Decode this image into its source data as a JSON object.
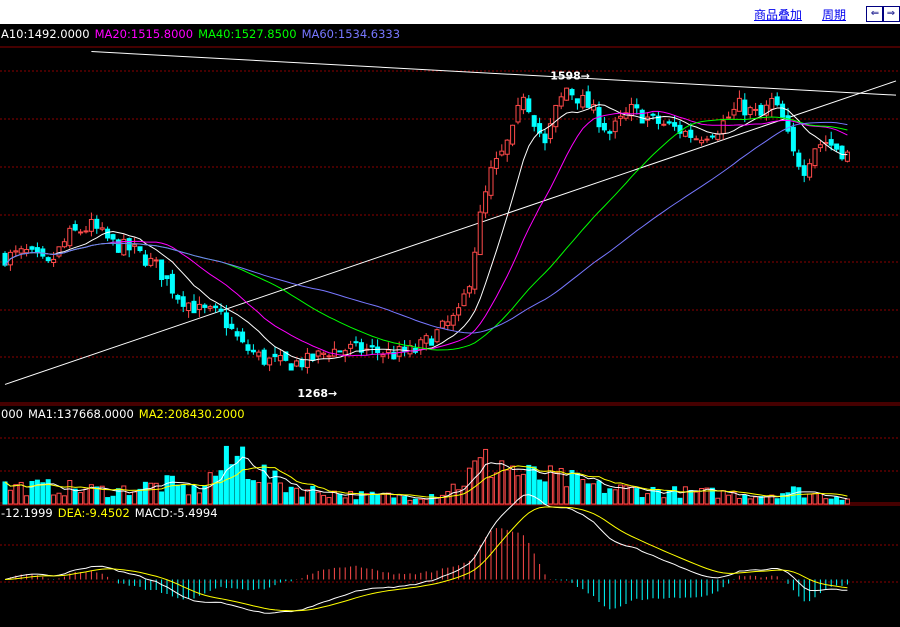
{
  "toolbar": {
    "overlay_label": "商品叠加",
    "period_label": "周期",
    "prev_icon": "arrow-left-icon",
    "next_icon": "arrow-right-icon"
  },
  "colors": {
    "up": "#ff4a4a",
    "down": "#00ffff",
    "ma10": "#ffffff",
    "ma20": "#ff00ff",
    "ma40": "#00ff00",
    "ma60": "#7777ff",
    "grid": "#8b0000",
    "trendline": "#ffffff",
    "vol_ma1": "#ffffff",
    "vol_ma2": "#ffff00",
    "macd_dif": "#ffffff",
    "macd_dea": "#ffff00"
  },
  "chart_data": [
    {
      "type": "candlestick",
      "legend": [
        {
          "text": "A10:1492.0000",
          "color": "#ffffff"
        },
        {
          "text": "MA20:1515.8000",
          "color": "#ff00ff"
        },
        {
          "text": "MA40:1527.8500",
          "color": "#00ff00"
        },
        {
          "text": "MA60:1534.6333",
          "color": "#7777ff"
        }
      ],
      "annotations": [
        {
          "text": "1598",
          "value": 1598,
          "kind": "high"
        },
        {
          "text": "1268",
          "value": 1268,
          "kind": "low"
        }
      ],
      "ylim": [
        1240,
        1640
      ],
      "anchors": [
        [
          0,
          1405
        ],
        [
          4,
          1410
        ],
        [
          8,
          1395
        ],
        [
          12,
          1430
        ],
        [
          16,
          1440
        ],
        [
          20,
          1420
        ],
        [
          24,
          1412
        ],
        [
          28,
          1395
        ],
        [
          32,
          1362
        ],
        [
          36,
          1345
        ],
        [
          40,
          1340
        ],
        [
          44,
          1305
        ],
        [
          48,
          1290
        ],
        [
          52,
          1285
        ],
        [
          56,
          1288
        ],
        [
          60,
          1300
        ],
        [
          64,
          1302
        ],
        [
          68,
          1300
        ],
        [
          72,
          1296
        ],
        [
          76,
          1300
        ],
        [
          80,
          1320
        ],
        [
          84,
          1340
        ],
        [
          86,
          1380
        ],
        [
          88,
          1450
        ],
        [
          90,
          1500
        ],
        [
          92,
          1520
        ],
        [
          94,
          1545
        ],
        [
          96,
          1590
        ],
        [
          98,
          1560
        ],
        [
          100,
          1530
        ],
        [
          102,
          1570
        ],
        [
          104,
          1595
        ],
        [
          108,
          1575
        ],
        [
          110,
          1560
        ],
        [
          112,
          1545
        ],
        [
          116,
          1570
        ],
        [
          120,
          1558
        ],
        [
          124,
          1550
        ],
        [
          128,
          1540
        ],
        [
          132,
          1550
        ],
        [
          136,
          1575
        ],
        [
          140,
          1563
        ],
        [
          142,
          1580
        ],
        [
          144,
          1560
        ],
        [
          146,
          1520
        ],
        [
          148,
          1505
        ],
        [
          150,
          1530
        ],
        [
          152,
          1535
        ],
        [
          154,
          1528
        ],
        [
          156,
          1520
        ]
      ],
      "ma_periods": [
        10,
        20,
        40,
        60
      ],
      "trendlines": [
        {
          "from": [
            16,
            1636
          ],
          "to": [
            165,
            1587
          ]
        },
        {
          "from": [
            0,
            1262
          ],
          "to": [
            165,
            1603
          ]
        }
      ]
    },
    {
      "type": "bar",
      "name": "volume",
      "legend": [
        {
          "text": "000",
          "color": "#ffffff"
        },
        {
          "text": "MA1:137668.0000",
          "color": "#ffffff"
        },
        {
          "text": "MA2:208430.2000",
          "color": "#ffff00"
        }
      ],
      "ylim": [
        0,
        650000
      ],
      "anchors": [
        [
          0,
          160000
        ],
        [
          10,
          150000
        ],
        [
          20,
          120000
        ],
        [
          30,
          180000
        ],
        [
          35,
          120000
        ],
        [
          40,
          320000
        ],
        [
          44,
          450000
        ],
        [
          46,
          330000
        ],
        [
          50,
          200000
        ],
        [
          55,
          130000
        ],
        [
          60,
          110000
        ],
        [
          65,
          80000
        ],
        [
          70,
          75000
        ],
        [
          75,
          70000
        ],
        [
          80,
          90000
        ],
        [
          84,
          180000
        ],
        [
          88,
          360000
        ],
        [
          92,
          380000
        ],
        [
          96,
          260000
        ],
        [
          100,
          240000
        ],
        [
          104,
          220000
        ],
        [
          110,
          150000
        ],
        [
          116,
          130000
        ],
        [
          124,
          110000
        ],
        [
          132,
          100000
        ],
        [
          140,
          80000
        ],
        [
          146,
          120000
        ],
        [
          150,
          90000
        ],
        [
          156,
          60000
        ]
      ],
      "ma_periods": [
        5,
        10
      ]
    },
    {
      "type": "macd",
      "legend": [
        {
          "text": "-12.1999",
          "color": "#ffffff"
        },
        {
          "text": "DEA:-9.4502",
          "color": "#ffff00"
        },
        {
          "text": "MACD:-5.4994",
          "color": "#ffffff"
        }
      ],
      "ylim": [
        -26,
        46
      ]
    }
  ]
}
